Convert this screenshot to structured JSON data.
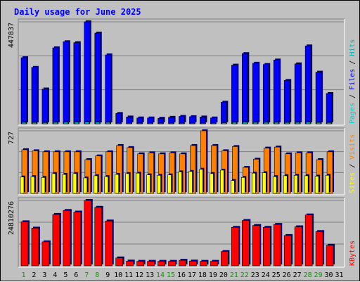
{
  "chart_data": {
    "type": "bar",
    "title": "Daily usage for June 2025",
    "categories": [
      "1",
      "2",
      "3",
      "4",
      "5",
      "6",
      "7",
      "8",
      "9",
      "10",
      "11",
      "12",
      "13",
      "14",
      "15",
      "16",
      "17",
      "18",
      "19",
      "20",
      "21",
      "22",
      "23",
      "24",
      "25",
      "26",
      "27",
      "28",
      "29",
      "30",
      "31"
    ],
    "weekend_days": [
      "1",
      "7",
      "8",
      "14",
      "15",
      "21",
      "22",
      "28",
      "29"
    ],
    "panels": [
      {
        "id": "hits-files-pages",
        "max_label": "447837",
        "ylim": [
          0,
          447837
        ],
        "legend": [
          "Pages",
          "/",
          "Files",
          "/",
          "Hits"
        ],
        "series": [
          {
            "name": "Hits",
            "color": "#00b0b0",
            "values": [
              0,
              0,
              0,
              0,
              0,
              0,
              0,
              0,
              0,
              0,
              0,
              0,
              0,
              0,
              0,
              0,
              0,
              0,
              0,
              0,
              0,
              0,
              0,
              0,
              0,
              0,
              0,
              0,
              0,
              0,
              0
            ]
          },
          {
            "name": "Files",
            "color": "#0000ff",
            "values": [
              290130,
              247690,
              152780,
              333550,
              360420,
              356180,
              447837,
              398330,
              302600,
              45260,
              29700,
              25460,
              25460,
              24040,
              28290,
              32530,
              31120,
              29700,
              25460,
              94770,
              257590,
              308260,
              265980,
              260320,
              280120,
              190330,
              263170,
              342030,
              226700,
              132940,
              0
            ]
          },
          {
            "name": "Pages",
            "color": "#00d0d0",
            "values": [
              6000,
              5500,
              5000,
              6000,
              6500,
              6500,
              7000,
              6500,
              6000,
              3000,
              3000,
              3000,
              3000,
              3000,
              3000,
              3000,
              3000,
              3000,
              3000,
              4500,
              6000,
              6500,
              6000,
              6000,
              6000,
              5500,
              6000,
              6500,
              5500,
              5000,
              0
            ]
          }
        ]
      },
      {
        "id": "visits-sites",
        "max_label": "727",
        "ylim": [
          0,
          727
        ],
        "legend": [
          "Sites",
          "/",
          "Visits"
        ],
        "series": [
          {
            "name": "Visits",
            "color": "#ff8000",
            "values": [
              507,
              495,
              483,
              483,
              483,
              483,
              392,
              435,
              483,
              556,
              532,
              459,
              471,
              459,
              471,
              459,
              556,
              727,
              556,
              495,
              544,
              302,
              397,
              526,
              538,
              459,
              471,
              471,
              392,
              483,
              0
            ]
          },
          {
            "name": "Sites",
            "color": "#ffff00",
            "values": [
              190,
              195,
              185,
              230,
              220,
              230,
              180,
              205,
              195,
              220,
              230,
              235,
              215,
              210,
              215,
              250,
              255,
              280,
              230,
              270,
              150,
              185,
              235,
              240,
              195,
              205,
              210,
              205,
              200,
              210,
              0
            ]
          }
        ]
      },
      {
        "id": "kbytes",
        "max_label": "24810276",
        "ylim": [
          0,
          24810276
        ],
        "legend": [
          "KBytes"
        ],
        "series": [
          {
            "name": "KBytes",
            "color": "#ff0000",
            "values": [
              16700000,
              14300000,
              9100000,
              19500000,
              21000000,
              20400000,
              24810276,
              22200000,
              17000000,
              3000000,
              1800000,
              1700000,
              1700000,
              1700000,
              1700000,
              2100000,
              1800000,
              1700000,
              1700000,
              5400000,
              14600000,
              17200000,
              15300000,
              14600000,
              15700000,
              11500000,
              14800000,
              19300000,
              13000000,
              7800000,
              0
            ]
          }
        ]
      }
    ]
  }
}
